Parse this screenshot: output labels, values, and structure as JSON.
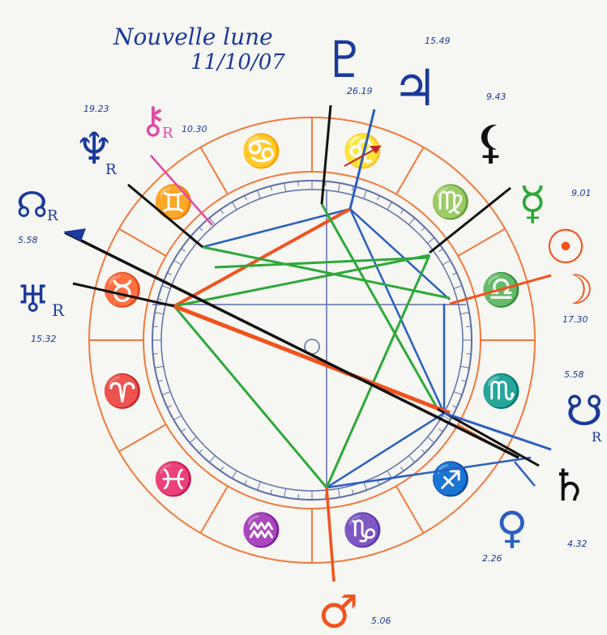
{
  "title_lines": [
    "Nouvelle lune",
    "11/10/07"
  ],
  "zodiac_signs": [
    {
      "id": "aries",
      "glyph": "♈"
    },
    {
      "id": "taurus",
      "glyph": "♉"
    },
    {
      "id": "gemini",
      "glyph": "♊"
    },
    {
      "id": "cancer",
      "glyph": "♋"
    },
    {
      "id": "leo",
      "glyph": "♌"
    },
    {
      "id": "virgo",
      "glyph": "♍"
    },
    {
      "id": "libra",
      "glyph": "♎"
    },
    {
      "id": "scorpio",
      "glyph": "♏"
    },
    {
      "id": "sagittarius",
      "glyph": "♐"
    },
    {
      "id": "capricorn",
      "glyph": "♑"
    },
    {
      "id": "aquarius",
      "glyph": "♒"
    },
    {
      "id": "pisces",
      "glyph": "♓"
    }
  ],
  "planets": [
    {
      "id": "uranus",
      "glyph": "♅",
      "retro": "R",
      "degree": "15.32"
    },
    {
      "id": "node",
      "glyph": "☊",
      "retro": "R",
      "degree": "5.58"
    },
    {
      "id": "neptune",
      "glyph": "♆",
      "retro": "R",
      "degree": "19.23"
    },
    {
      "id": "chiron",
      "glyph": "⚷",
      "retro": "R",
      "degree": "10.30"
    },
    {
      "id": "pluto",
      "glyph": "♇",
      "retro": "",
      "degree": "26.19"
    },
    {
      "id": "jupiter",
      "glyph": "♃",
      "retro": "",
      "degree": "15.49"
    },
    {
      "id": "lilith",
      "glyph": "⚸",
      "retro": "",
      "degree": "9.43"
    },
    {
      "id": "mercury",
      "glyph": "☿",
      "retro": "",
      "degree": "9.01"
    },
    {
      "id": "sun",
      "glyph": "☉",
      "retro": "",
      "degree": ""
    },
    {
      "id": "moon",
      "glyph": "☽",
      "retro": "",
      "degree": "17.30"
    },
    {
      "id": "venus",
      "glyph": "♀",
      "retro": "",
      "degree": "2.26"
    },
    {
      "id": "saturn",
      "glyph": "♄",
      "retro": "",
      "degree": "4.32"
    },
    {
      "id": "south-node",
      "glyph": "☋",
      "retro": "R",
      "degree": "5.58"
    },
    {
      "id": "mars",
      "glyph": "♂",
      "retro": "",
      "degree": "5.06"
    }
  ],
  "colors": {
    "ring": "#ef7a3e",
    "inner_ring": "#5d6fa8",
    "blue": "#2a5fc0",
    "red": "#f0531e",
    "green": "#2ea83a",
    "black": "#111111",
    "pink": "#e04aa8",
    "ink": "#1a3a9a"
  }
}
